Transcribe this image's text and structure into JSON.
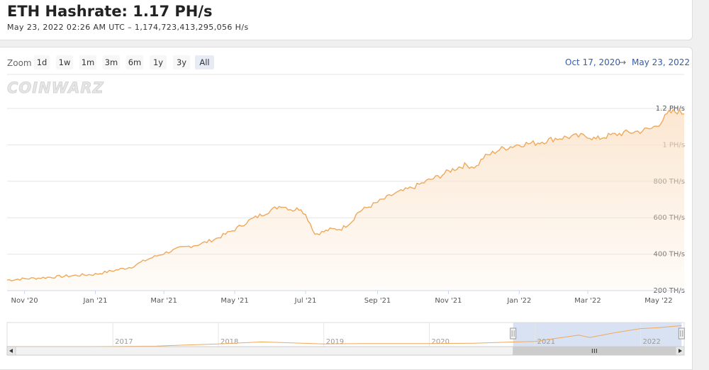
{
  "header": {
    "title": "ETH Hashrate: 1.17 PH/s",
    "subtitle": "May 23, 2022 02:26 AM UTC  –  1,174,723,413,295,056 H/s"
  },
  "toolbar": {
    "zoom_label": "Zoom",
    "buttons": [
      "1d",
      "1w",
      "1m",
      "3m",
      "6m",
      "1y",
      "3y",
      "All"
    ],
    "selected": "All",
    "range_from": "Oct 17, 2020",
    "range_arrow": "→",
    "range_to": "May 23, 2022"
  },
  "watermark": "COINWARZ",
  "colors": {
    "line": "#f0a85a",
    "area": "#fbe3c9",
    "navigator_mask": "#d0dbf0",
    "grid": "#e6e6e6",
    "range_text": "#335cad"
  },
  "chart_data": {
    "type": "area",
    "title": "ETH Hashrate: 1.17 PH/s",
    "ylabel": "",
    "xlabel": "",
    "y_unit": "TH/s",
    "ylim": [
      200,
      1200
    ],
    "y_ticks": [
      {
        "value": 200,
        "label": "200 TH/s"
      },
      {
        "value": 400,
        "label": "400 TH/s"
      },
      {
        "value": 600,
        "label": "600 TH/s"
      },
      {
        "value": 800,
        "label": "800 TH/s"
      },
      {
        "value": 1000,
        "label": "1 PH/s"
      },
      {
        "value": 1200,
        "label": "1.2 PH/s"
      }
    ],
    "x_ticks": [
      {
        "date": "2020-11-01",
        "label": "Nov '20"
      },
      {
        "date": "2021-01-01",
        "label": "Jan '21"
      },
      {
        "date": "2021-03-01",
        "label": "Mar '21"
      },
      {
        "date": "2021-05-01",
        "label": "May '21"
      },
      {
        "date": "2021-07-01",
        "label": "Jul '21"
      },
      {
        "date": "2021-09-01",
        "label": "Sep '21"
      },
      {
        "date": "2021-11-01",
        "label": "Nov '21"
      },
      {
        "date": "2022-01-01",
        "label": "Jan '22"
      },
      {
        "date": "2022-03-01",
        "label": "Mar '22"
      },
      {
        "date": "2022-05-01",
        "label": "May '22"
      }
    ],
    "xlim": [
      "2020-10-17",
      "2022-05-23"
    ],
    "grid": true,
    "legend": "none",
    "series": [
      {
        "points": [
          [
            "2020-10-17",
            258
          ],
          [
            "2020-11-01",
            265
          ],
          [
            "2020-11-15",
            270
          ],
          [
            "2020-12-01",
            277
          ],
          [
            "2020-12-15",
            283
          ],
          [
            "2021-01-01",
            290
          ],
          [
            "2021-01-15",
            308
          ],
          [
            "2021-02-01",
            330
          ],
          [
            "2021-02-15",
            372
          ],
          [
            "2021-03-01",
            405
          ],
          [
            "2021-03-15",
            433
          ],
          [
            "2021-04-01",
            455
          ],
          [
            "2021-04-15",
            485
          ],
          [
            "2021-05-01",
            535
          ],
          [
            "2021-05-15",
            590
          ],
          [
            "2021-06-01",
            640
          ],
          [
            "2021-06-10",
            668
          ],
          [
            "2021-06-20",
            643
          ],
          [
            "2021-06-27",
            652
          ],
          [
            "2021-07-01",
            615
          ],
          [
            "2021-07-05",
            570
          ],
          [
            "2021-07-09",
            510
          ],
          [
            "2021-07-15",
            520
          ],
          [
            "2021-07-22",
            535
          ],
          [
            "2021-08-01",
            540
          ],
          [
            "2021-08-10",
            582
          ],
          [
            "2021-08-15",
            630
          ],
          [
            "2021-09-01",
            685
          ],
          [
            "2021-09-15",
            730
          ],
          [
            "2021-10-01",
            765
          ],
          [
            "2021-10-15",
            805
          ],
          [
            "2021-10-25",
            830
          ],
          [
            "2021-11-01",
            855
          ],
          [
            "2021-11-10",
            878
          ],
          [
            "2021-11-15",
            888
          ],
          [
            "2021-11-25",
            880
          ],
          [
            "2021-12-01",
            930
          ],
          [
            "2021-12-15",
            975
          ],
          [
            "2022-01-01",
            1003
          ],
          [
            "2022-01-15",
            1010
          ],
          [
            "2022-02-01",
            1035
          ],
          [
            "2022-02-15",
            1045
          ],
          [
            "2022-03-01",
            1050
          ],
          [
            "2022-03-08",
            1030
          ],
          [
            "2022-03-15",
            1045
          ],
          [
            "2022-04-01",
            1065
          ],
          [
            "2022-04-15",
            1075
          ],
          [
            "2022-04-25",
            1090
          ],
          [
            "2022-05-01",
            1115
          ],
          [
            "2022-05-10",
            1175
          ],
          [
            "2022-05-17",
            1185
          ],
          [
            "2022-05-23",
            1170
          ]
        ]
      }
    ],
    "navigator": {
      "x_ticks": [
        {
          "date": "2017-01-01",
          "label": "2017"
        },
        {
          "date": "2018-01-01",
          "label": "2018"
        },
        {
          "date": "2019-01-01",
          "label": "2019"
        },
        {
          "date": "2020-01-01",
          "label": "2020"
        },
        {
          "date": "2021-01-01",
          "label": "2021"
        },
        {
          "date": "2022-01-01",
          "label": "2022"
        }
      ],
      "xlim": [
        "2016-01-01",
        "2022-06-01"
      ],
      "selected_range": [
        "2020-10-17",
        "2022-05-23"
      ],
      "points": [
        [
          "2016-01-01",
          2
        ],
        [
          "2016-06-01",
          3
        ],
        [
          "2017-01-01",
          6
        ],
        [
          "2017-06-01",
          30
        ],
        [
          "2018-01-01",
          150
        ],
        [
          "2018-06-01",
          260
        ],
        [
          "2019-01-01",
          150
        ],
        [
          "2019-06-01",
          170
        ],
        [
          "2020-01-01",
          165
        ],
        [
          "2020-06-01",
          190
        ],
        [
          "2020-10-17",
          258
        ],
        [
          "2021-01-01",
          290
        ],
        [
          "2021-06-01",
          640
        ],
        [
          "2021-07-09",
          510
        ],
        [
          "2021-10-01",
          765
        ],
        [
          "2022-01-01",
          1003
        ],
        [
          "2022-03-01",
          1050
        ],
        [
          "2022-05-23",
          1170
        ]
      ]
    }
  }
}
